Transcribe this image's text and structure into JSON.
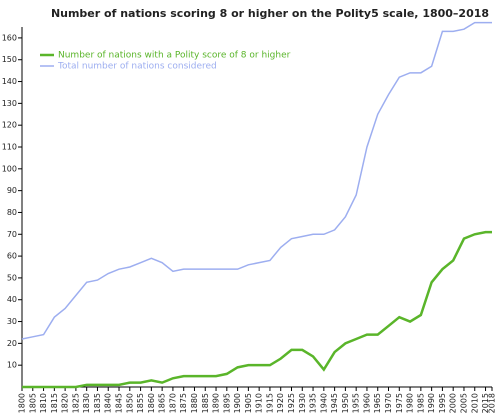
{
  "chart_data": {
    "type": "line",
    "title": "Number of nations scoring 8 or higher on the Polity5 scale, 1800–2018",
    "x": [
      1800,
      1805,
      1810,
      1815,
      1820,
      1825,
      1830,
      1835,
      1840,
      1845,
      1850,
      1855,
      1860,
      1865,
      1870,
      1875,
      1880,
      1885,
      1890,
      1895,
      1900,
      1905,
      1910,
      1915,
      1920,
      1925,
      1930,
      1935,
      1940,
      1945,
      1950,
      1955,
      1960,
      1965,
      1970,
      1975,
      1980,
      1985,
      1990,
      1995,
      2000,
      2005,
      2010,
      2015,
      2018
    ],
    "series": [
      {
        "name": "Number of nations with a Polity score of 8 or higher",
        "color": "#5ab52a",
        "values": [
          0,
          0,
          0,
          0,
          0,
          0,
          1,
          1,
          1,
          1,
          2,
          2,
          3,
          2,
          4,
          5,
          5,
          5,
          5,
          6,
          9,
          10,
          10,
          10,
          13,
          17,
          17,
          14,
          8,
          16,
          20,
          22,
          24,
          24,
          28,
          32,
          30,
          33,
          48,
          54,
          58,
          68,
          70,
          71,
          71
        ]
      },
      {
        "name": "Total number of nations considered",
        "color": "#9daef0",
        "values": [
          22,
          23,
          24,
          32,
          36,
          42,
          48,
          49,
          52,
          54,
          55,
          57,
          59,
          57,
          53,
          54,
          54,
          54,
          54,
          54,
          54,
          56,
          57,
          58,
          64,
          68,
          69,
          70,
          70,
          72,
          78,
          88,
          110,
          125,
          134,
          142,
          144,
          144,
          147,
          163,
          163,
          164,
          167,
          167,
          167
        ]
      }
    ],
    "xlim": [
      1800,
      2018
    ],
    "xticks": [
      1800,
      1805,
      1810,
      1815,
      1820,
      1825,
      1830,
      1835,
      1840,
      1845,
      1850,
      1855,
      1860,
      1865,
      1870,
      1875,
      1880,
      1885,
      1890,
      1895,
      1900,
      1905,
      1910,
      1915,
      1920,
      1925,
      1930,
      1935,
      1940,
      1945,
      1950,
      1955,
      1960,
      1965,
      1970,
      1975,
      1980,
      1985,
      1990,
      1995,
      2000,
      2005,
      2010,
      2015,
      2018
    ],
    "ylim": [
      0,
      165
    ],
    "yticks": [
      10,
      20,
      30,
      40,
      50,
      60,
      70,
      80,
      90,
      100,
      110,
      120,
      130,
      140,
      150,
      160
    ]
  }
}
